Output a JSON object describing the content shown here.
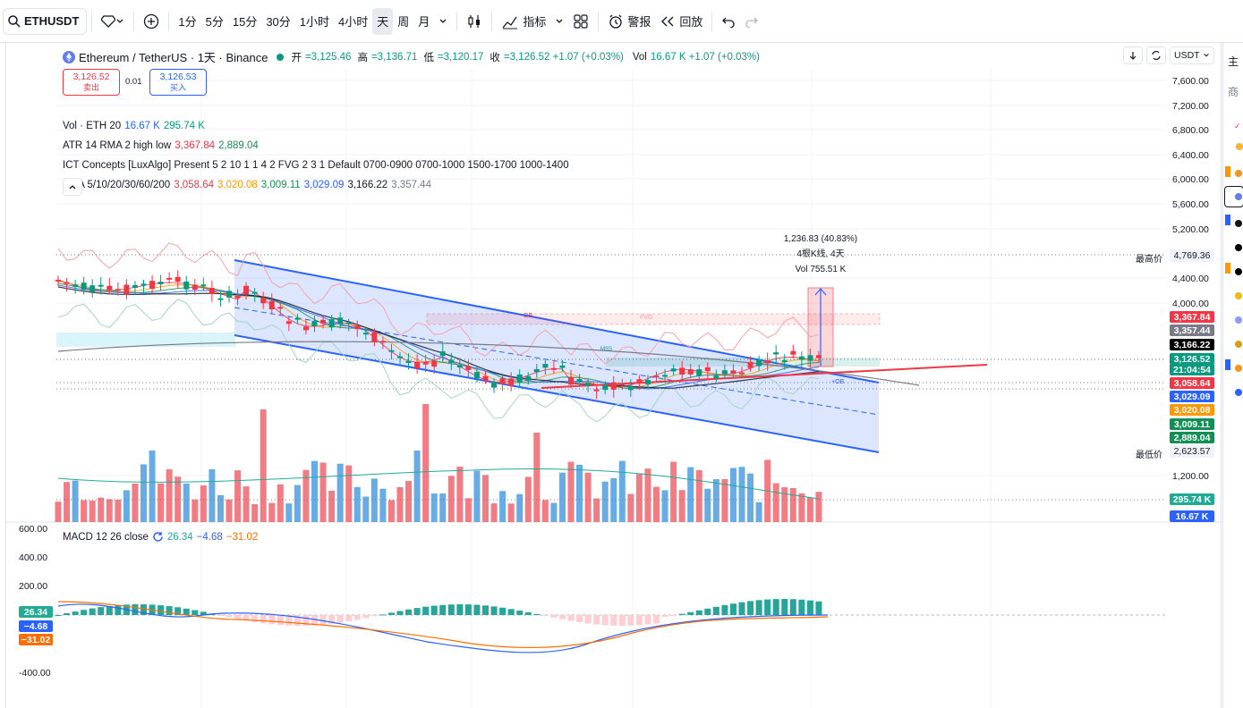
{
  "toolbar": {
    "symbol": "ETHUSDT",
    "intervals": [
      "1分",
      "5分",
      "15分",
      "30分",
      "1小时",
      "4小时",
      "天",
      "周",
      "月"
    ],
    "active_interval": "天",
    "indicators_label": "指标",
    "alert_label": "警报",
    "replay_label": "回放"
  },
  "header": {
    "title": "Ethereum / TetherUS · 1天 · Binance",
    "ohlc": [
      {
        "label": "开",
        "value": "=3,125.46"
      },
      {
        "label": "高",
        "value": "=3,136.71"
      },
      {
        "label": "低",
        "value": "=3,120.17"
      },
      {
        "label": "收",
        "value": "=3,126.52 +1.07 (+0.03%)"
      }
    ],
    "vol_label": "Vol",
    "vol_value": "16.67 K +1.07 (+0.03%)",
    "currency": "USDT"
  },
  "trade": {
    "sell_price": "3,126.52",
    "sell_label": "卖出",
    "spread": "0.01",
    "buy_price": "3,126.53",
    "buy_label": "买入"
  },
  "indicators": {
    "vol": {
      "name": "Vol · ETH 20",
      "v1": "16.67 K",
      "v2": "295.74 K"
    },
    "atr": {
      "name": "ATR 14 RMA 2 high low",
      "v1": "3,367.84",
      "v2": "2,889.04"
    },
    "ict": {
      "name": "ICT Concepts [LuxAlgo] Present 5 2 10 1 1 4 2 FVG 2 3 1 Default 0700-0900 0700-1000 1500-1700 1000-1400"
    },
    "ema": {
      "name": "EMA 5/10/20/30/60/200",
      "values": [
        "3,058.64",
        "3,020.08",
        "3,009.11",
        "3,029.09",
        "3,166.22",
        "3,357.44"
      ]
    },
    "macd": {
      "name": "MACD 12 26 close",
      "values": [
        "26.34",
        "−4.68",
        "−31.02"
      ]
    }
  },
  "measure": {
    "line1": "1,236.83 (40.83%)",
    "line2": "4根K线, 4天",
    "line3": "Vol 755.51 K"
  },
  "chart_labels": {
    "ob": "OB",
    "fvg": "FVG",
    "plus_ob": "+OB",
    "mss": "MSS"
  },
  "price_axis": {
    "ticks": [
      "7,600.00",
      "7,200.00",
      "6,800.00",
      "6,400.00",
      "6,000.00",
      "5,600.00",
      "5,200.00",
      "4,400.00",
      "4,000.00",
      "1,200.00"
    ],
    "high_label": "最高价",
    "high_value": "4,769.36",
    "low_label": "最低价",
    "low_value": "2,623.57",
    "labels": [
      {
        "value": "3,367.84",
        "color": "#f23645"
      },
      {
        "value": "3,357.44",
        "color": "#787b86"
      },
      {
        "value": "3,166.22",
        "color": "#000000"
      },
      {
        "value": "3,126.52",
        "color": "#089981"
      },
      {
        "value": "21:04:54",
        "color": "#089981"
      },
      {
        "value": "3,058.64",
        "color": "#f23645"
      },
      {
        "value": "3,029.09",
        "color": "#2962ff"
      },
      {
        "value": "3,020.08",
        "color": "#ff9800"
      },
      {
        "value": "3,009.11",
        "color": "#22ab94"
      },
      {
        "value": "2,889.04",
        "color": "#138f56"
      },
      {
        "value": "295.74 K",
        "color": "#22ab94"
      },
      {
        "value": "16.67 K",
        "color": "#2962ff"
      }
    ]
  },
  "macd_axis": {
    "ticks": [
      "600.00",
      "400.00",
      "200.00",
      "-400.00"
    ],
    "labels": [
      {
        "value": "26.34",
        "color": "#22ab94"
      },
      {
        "value": "−4.68",
        "color": "#2962ff"
      },
      {
        "value": "−31.02",
        "color": "#ff6d00"
      }
    ]
  },
  "right_strip": {
    "top_char": "主",
    "second_char": "商"
  },
  "colors": {
    "up": "#089981",
    "down": "#f23645",
    "channel": "#2962ff",
    "vol_up": "#4c9ee0",
    "vol_down": "#f0656f"
  }
}
